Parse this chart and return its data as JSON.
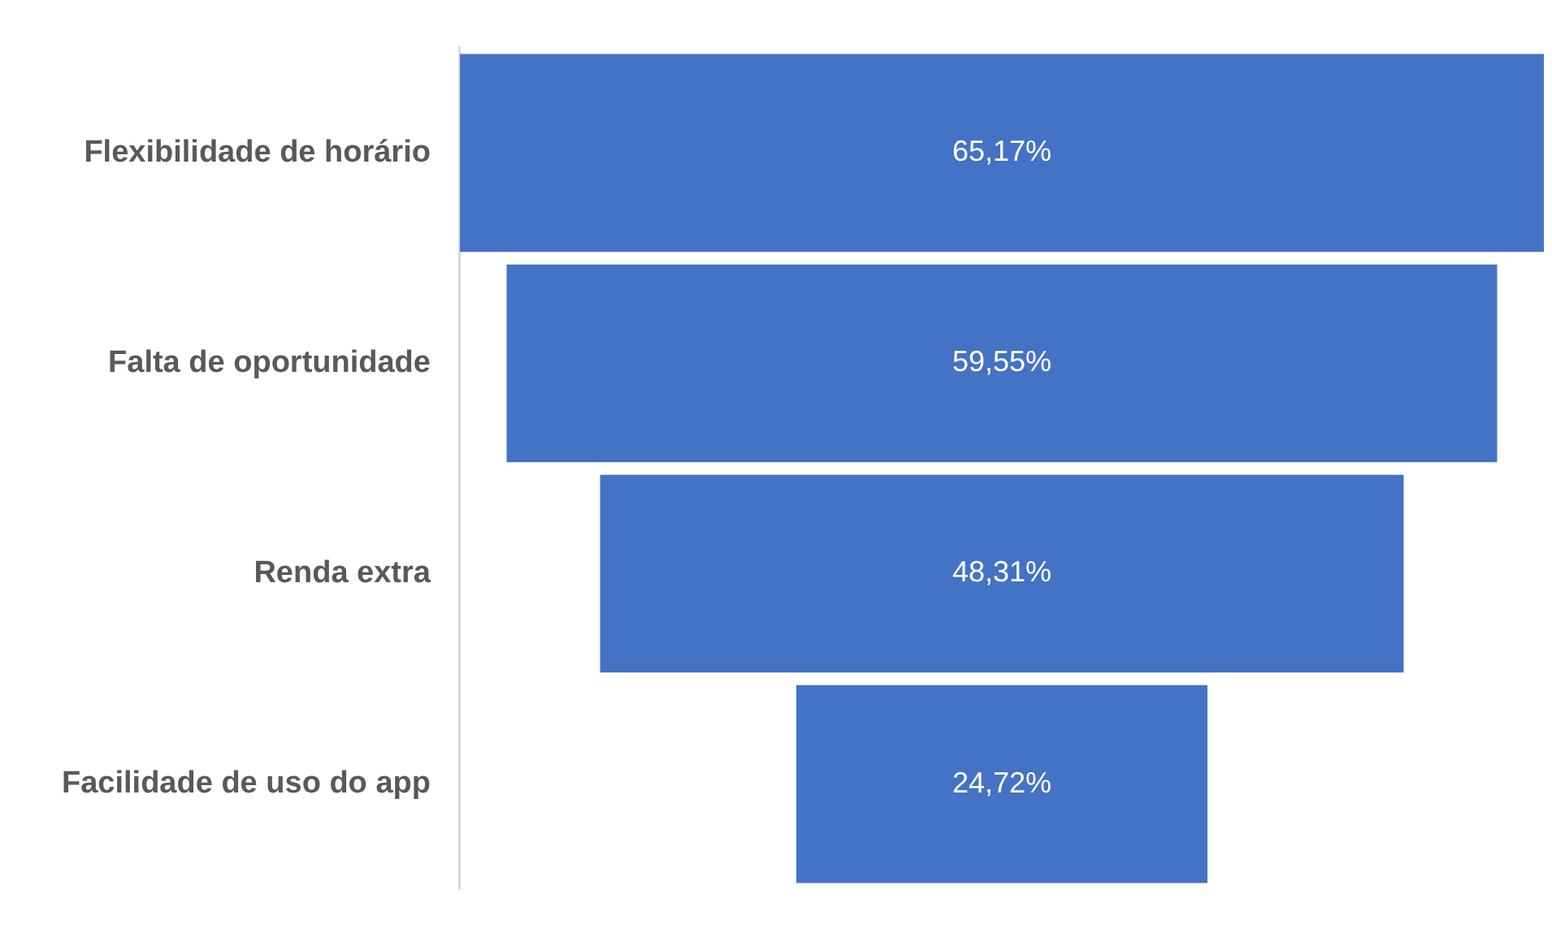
{
  "chart_data": {
    "type": "other",
    "categories": [
      "Flexibilidade de horário",
      "Falta de oportunidade",
      "Renda extra",
      "Facilidade de uso do app"
    ],
    "values": [
      65.17,
      59.55,
      48.31,
      24.72
    ],
    "value_labels": [
      "65,17%",
      "59,55%",
      "48,31%",
      "24,72%"
    ],
    "color": "#4472c4",
    "legend": false
  }
}
